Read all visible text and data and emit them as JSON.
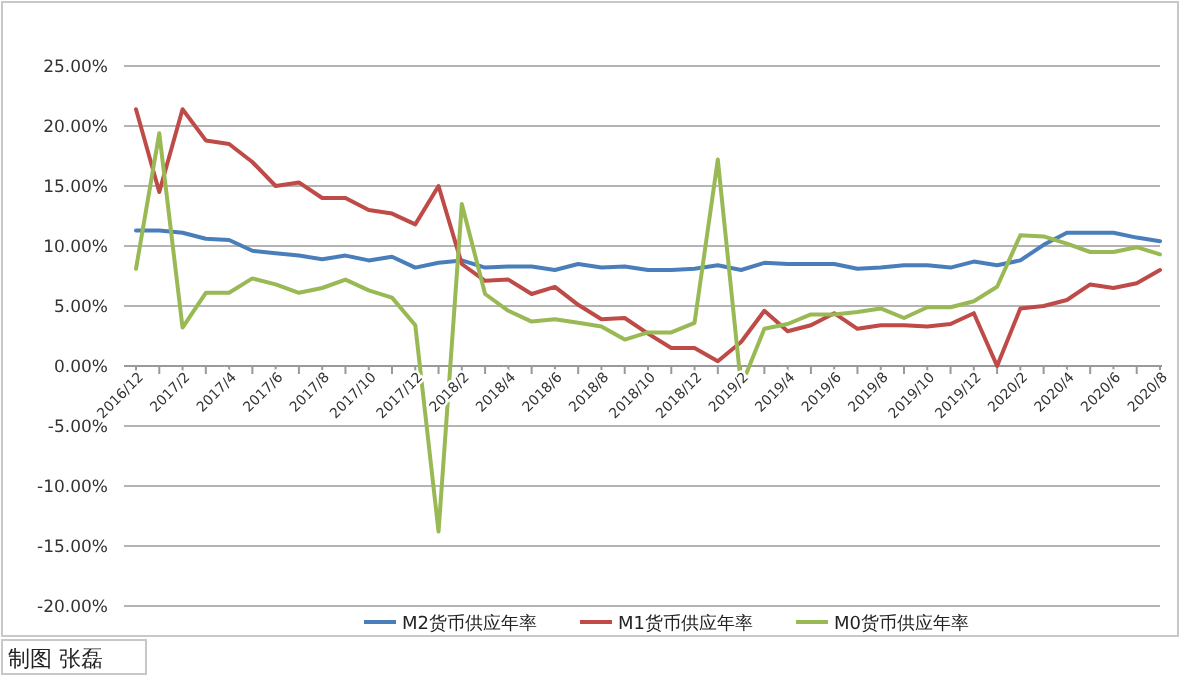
{
  "chart_data": {
    "type": "line",
    "categories": [
      "2016/12",
      null,
      "2017/2",
      null,
      "2017/4",
      null,
      "2017/6",
      null,
      "2017/8",
      null,
      "2017/10",
      null,
      "2017/12",
      null,
      "2018/2",
      null,
      "2018/4",
      null,
      "2018/6",
      null,
      "2018/8",
      null,
      "2018/10",
      null,
      "2018/12",
      null,
      "2019/2",
      null,
      "2019/4",
      null,
      "2019/6",
      null,
      "2019/8",
      null,
      "2019/10",
      null,
      "2019/12",
      null,
      "2020/2",
      null,
      "2020/4",
      null,
      "2020/6",
      null,
      "2020/8"
    ],
    "series": [
      {
        "name": "M2货币供应年率",
        "color": "#4a7ebb",
        "values": [
          11.3,
          11.3,
          11.1,
          10.6,
          10.5,
          9.6,
          9.4,
          9.2,
          8.9,
          9.2,
          8.8,
          9.1,
          8.2,
          8.6,
          8.8,
          8.2,
          8.3,
          8.3,
          8.0,
          8.5,
          8.2,
          8.3,
          8.0,
          8.0,
          8.1,
          8.4,
          8.0,
          8.6,
          8.5,
          8.5,
          8.5,
          8.1,
          8.2,
          8.4,
          8.4,
          8.2,
          8.7,
          8.4,
          8.8,
          10.1,
          11.1,
          11.1,
          11.1,
          10.7,
          10.4
        ]
      },
      {
        "name": "M1货币供应年率",
        "color": "#be4b48",
        "values": [
          21.4,
          14.5,
          21.4,
          18.8,
          18.5,
          17.0,
          15.0,
          15.3,
          14.0,
          14.0,
          13.0,
          12.7,
          11.8,
          15.0,
          8.5,
          7.1,
          7.2,
          6.0,
          6.6,
          5.1,
          3.9,
          4.0,
          2.7,
          1.5,
          1.5,
          0.4,
          2.0,
          4.6,
          2.9,
          3.4,
          4.4,
          3.1,
          3.4,
          3.4,
          3.3,
          3.5,
          4.4,
          0.0,
          4.8,
          5.0,
          5.5,
          6.8,
          6.5,
          6.9,
          8.0
        ]
      },
      {
        "name": "M0货币供应年率",
        "color": "#98b954",
        "values": [
          8.1,
          19.4,
          3.2,
          6.1,
          6.1,
          7.3,
          6.8,
          6.1,
          6.5,
          7.2,
          6.3,
          5.7,
          3.4,
          -13.8,
          13.5,
          6.0,
          4.6,
          3.7,
          3.9,
          3.6,
          3.3,
          2.2,
          2.8,
          2.8,
          3.6,
          17.2,
          -1.7,
          3.1,
          3.5,
          4.3,
          4.3,
          4.5,
          4.8,
          4.0,
          4.9,
          4.9,
          5.4,
          6.6,
          10.9,
          10.8,
          10.2,
          9.5,
          9.5,
          9.9,
          9.3
        ]
      }
    ],
    "ylim": [
      -20,
      25
    ],
    "yticks": [
      {
        "value": -20,
        "label": "-20.00%"
      },
      {
        "value": -15,
        "label": "-15.00%"
      },
      {
        "value": -10,
        "label": "-10.00%"
      },
      {
        "value": -5,
        "label": "-5.00%"
      },
      {
        "value": 0,
        "label": "0.00%"
      },
      {
        "value": 5,
        "label": "5.00%"
      },
      {
        "value": 10,
        "label": "10.00%"
      },
      {
        "value": 15,
        "label": "15.00%"
      },
      {
        "value": 20,
        "label": "20.00%"
      },
      {
        "value": 25,
        "label": "25.00%"
      }
    ],
    "grid": "y",
    "legend": "bottom",
    "marker": "none",
    "line_style": "solid",
    "annotations": [
      "制图  张磊"
    ]
  }
}
